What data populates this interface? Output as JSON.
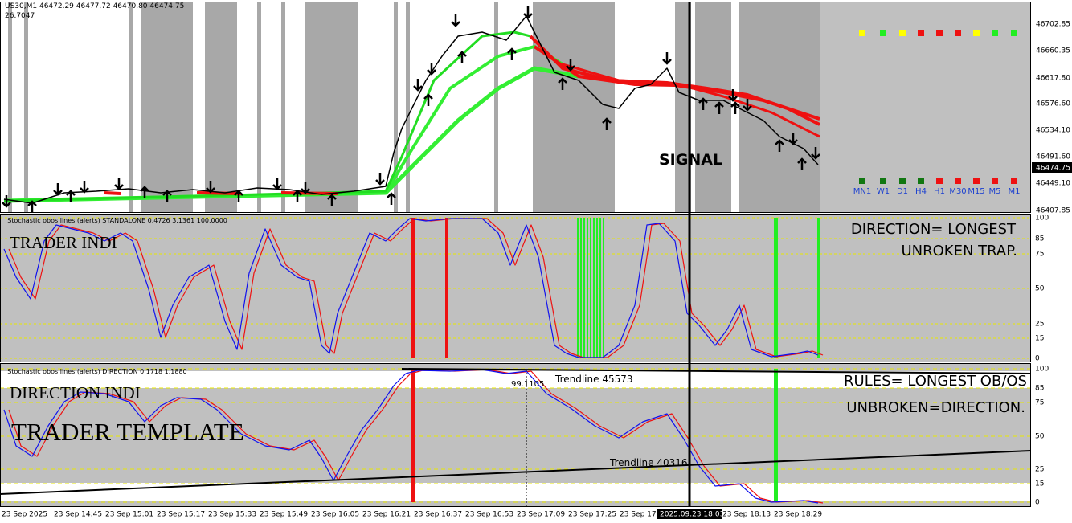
{
  "header": {
    "quote": "US30,M1  46472.29 46477.72 46470.80 46474.75",
    "sub": "26.7047"
  },
  "price_axis": [
    "46702.85",
    "46660.35",
    "46617.80",
    "46576.60",
    "46534.10",
    "46491.60",
    "46449.10",
    "46407.85"
  ],
  "current_price": "46474.75",
  "timeframes": [
    "MN1",
    "W1",
    "D1",
    "H4",
    "H1",
    "M30",
    "M15",
    "M5",
    "M1"
  ],
  "signal_label": "SIGNAL",
  "panel_trader": {
    "title": "!Stochastic obos lines (alerts) STANDALONE 0.4726 3.1361 100.0000",
    "label": "TRADER INDI",
    "notes": [
      "DIRECTION= LONGEST",
      "UNROKEN TRAP."
    ],
    "levels": [
      "100",
      "85",
      "75",
      "50",
      "25",
      "15",
      "0"
    ]
  },
  "panel_direction": {
    "title": "!Stochastic obos lines (alerts) DIRECTION 0.1718 1.1880",
    "label": "DIRECTION INDI",
    "template": "TRADER TEMPLATE",
    "notes": [
      "RULES= LONGEST OB/OS",
      "UNBROKEN=DIRECTION."
    ],
    "trendlines": [
      "Trendline 45573",
      "Trendline 40316"
    ],
    "value": "99.1105",
    "levels": [
      "100",
      "85",
      "75",
      "50",
      "25",
      "15",
      "0"
    ]
  },
  "time_axis": [
    "23 Sep 2025",
    "23 Sep 14:45",
    "23 Sep 15:01",
    "23 Sep 15:17",
    "23 Sep 15:33",
    "23 Sep 15:49",
    "23 Sep 16:05",
    "23 Sep 16:21",
    "23 Sep 16:37",
    "23 Sep 16:53",
    "23 Sep 17:09",
    "23 Sep 17:25",
    "23 Sep 17:41",
    "23 Sep 18:13",
    "23 Sep 18:29"
  ],
  "cursor_time": "2025.09.23 18:03"
}
